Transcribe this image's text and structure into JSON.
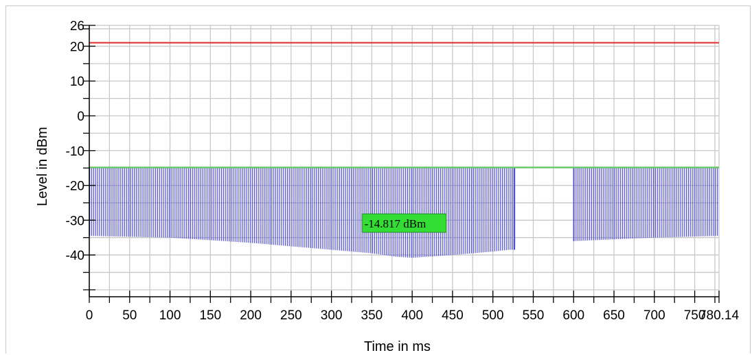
{
  "chart_data": {
    "type": "line",
    "xlabel": "Time in ms",
    "ylabel": "Level in dBm",
    "xlim": [
      0,
      780.14
    ],
    "ylim": [
      -52,
      26
    ],
    "x_ticks": [
      "0",
      "50",
      "100",
      "150",
      "200",
      "250",
      "300",
      "350",
      "400",
      "450",
      "500",
      "550",
      "600",
      "650",
      "700",
      "750",
      "780.14"
    ],
    "y_ticks": [
      "26",
      "20",
      "10",
      "0",
      "-10",
      "-20",
      "-30",
      "-40"
    ],
    "grid": true,
    "colors": {
      "limit_line": "#e04040",
      "reference_line": "#66cc66",
      "pulses": "#5050d0",
      "marker_bg": "#33dd33"
    },
    "series": [
      {
        "name": "",
        "type": "hline",
        "y": 21
      },
      {
        "name": "",
        "type": "hline",
        "y": -14.817
      },
      {
        "name": "",
        "type": "pulse-train",
        "top_level": -14.817,
        "pulse_spacing_ms": 2.4,
        "gap_ms": [
          527,
          600
        ],
        "bottom_profile_x": [
          0,
          100,
          200,
          300,
          350,
          380,
          400,
          450,
          500,
          520,
          527,
          600,
          650,
          700,
          780.14
        ],
        "bottom_profile_y": [
          -34.5,
          -35.0,
          -36.5,
          -38.5,
          -39.5,
          -40.5,
          -40.8,
          -40.0,
          -39.0,
          -38.5,
          -38.5,
          -36.0,
          -35.5,
          -35.0,
          -34.5
        ]
      }
    ],
    "annotations": [
      {
        "text": "-14.817 dBm",
        "x": 340,
        "y": -14.817
      }
    ]
  }
}
